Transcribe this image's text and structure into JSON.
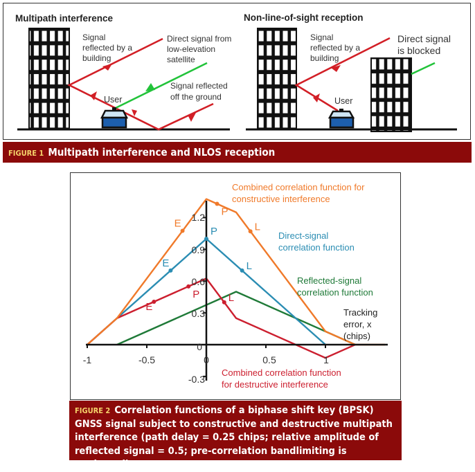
{
  "figure1": {
    "left_panel": {
      "title": "Multipath interference",
      "label_reflected_building": [
        "Signal",
        "reflected by a",
        "building"
      ],
      "label_direct": [
        "Direct signal from",
        "low-elevation",
        "satellite"
      ],
      "label_ground": [
        "Signal reflected",
        "off the ground"
      ],
      "user_label": "User"
    },
    "right_panel": {
      "title": "Non-line-of-sight reception",
      "label_reflected_building": [
        "Signal",
        "reflected by a",
        "building"
      ],
      "label_blocked": [
        "Direct signal",
        "is blocked"
      ],
      "user_label": "User"
    },
    "caption": {
      "number": "FIGURE 1",
      "text": "Multipath interference and NLOS reception"
    }
  },
  "figure2": {
    "caption": {
      "number": "FIGURE 2",
      "text": "Correlation functions of a biphase shift key (BPSK) GNSS signal subject to constructive and destructive multipath interference (path delay = 0.25 chips; relative amplitude of reflected signal = 0.5; pre-correlation bandlimiting is neglected)"
    }
  },
  "colors": {
    "orange": "#f07a2a",
    "blue": "#2b8db3",
    "red": "#cc1f2f",
    "green": "#1f7a38",
    "caption_bg": "#8b0a0a"
  },
  "chart_data": {
    "type": "line",
    "xlabel": [
      "Tracking",
      "error, x",
      "(chips)"
    ],
    "xlim": [
      -1,
      1.5
    ],
    "ylim": [
      -0.3,
      1.4
    ],
    "x_ticks": [
      "-1",
      "-0.5",
      "0",
      "0.5",
      "1"
    ],
    "y_ticks": [
      "1.2",
      "0.9",
      "0.6",
      "0.3",
      "0",
      "-0.3"
    ],
    "grid": false,
    "series": [
      {
        "name": "Reflected-signal correlation function",
        "label": [
          "Reflected-signal",
          "correlation function"
        ],
        "color": "#1f7a38",
        "x": [
          -0.75,
          0.25,
          1.25
        ],
        "y": [
          0,
          0.5,
          0
        ],
        "markers": []
      },
      {
        "name": "Direct-signal correlation function",
        "label": [
          "Direct-signal",
          "correlation function"
        ],
        "color": "#2b8db3",
        "x": [
          -1,
          0,
          1
        ],
        "y": [
          0,
          1,
          0
        ],
        "markers": [
          {
            "label": "E",
            "x": -0.3
          },
          {
            "label": "P",
            "x": 0
          },
          {
            "label": "L",
            "x": 0.3
          }
        ]
      },
      {
        "name": "Combined correlation function for destructive interference",
        "label": [
          "Combined correlation function",
          "for destructive interference"
        ],
        "color": "#cc1f2f",
        "x": [
          -1,
          -0.75,
          0,
          0.25,
          1,
          1.25
        ],
        "y": [
          0,
          0.25,
          0.625,
          0.25,
          -0.125,
          0
        ],
        "markers": [
          {
            "label": "E",
            "x": -0.44
          },
          {
            "label": "P",
            "x": -0.15
          },
          {
            "label": "L",
            "x": 0.15
          }
        ]
      },
      {
        "name": "Combined correlation function for constructive interference",
        "label": [
          "Combined correlation function for",
          "constructive interference"
        ],
        "color": "#f07a2a",
        "x": [
          -1,
          -0.75,
          0,
          0.25,
          1,
          1.25,
          1.5
        ],
        "y": [
          0,
          0.25,
          1.375,
          1.25,
          0.125,
          0,
          0
        ],
        "markers": [
          {
            "label": "E",
            "x": -0.2
          },
          {
            "label": "P",
            "x": 0.09
          },
          {
            "label": "L",
            "x": 0.37
          }
        ]
      }
    ]
  }
}
